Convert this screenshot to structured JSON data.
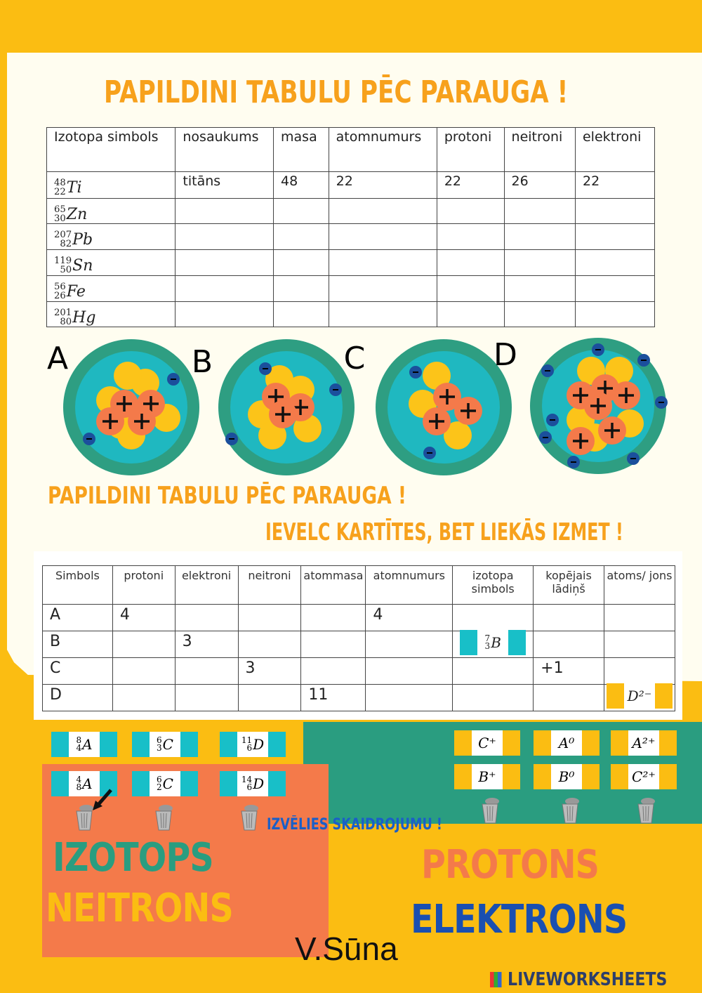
{
  "title1": "PAPILDINI TABULU PĒC PARAUGA !",
  "table1": {
    "headers": [
      "Izotopa simbols",
      "nosaukums",
      "masa",
      "atomnumurs",
      "protoni",
      "neitroni",
      "elektroni"
    ],
    "rows": [
      {
        "iso": {
          "a": "48",
          "z": "22",
          "s": "Ti"
        },
        "cells": [
          "titāns",
          "48",
          "22",
          "22",
          "26",
          "22"
        ]
      },
      {
        "iso": {
          "a": "65",
          "z": "30",
          "s": "Zn"
        },
        "cells": [
          "",
          "",
          "",
          "",
          "",
          ""
        ]
      },
      {
        "iso": {
          "a": "207",
          "z": "82",
          "s": "Pb"
        },
        "cells": [
          "",
          "",
          "",
          "",
          "",
          ""
        ]
      },
      {
        "iso": {
          "a": "119",
          "z": "50",
          "s": "Sn"
        },
        "cells": [
          "",
          "",
          "",
          "",
          "",
          ""
        ]
      },
      {
        "iso": {
          "a": "56",
          "z": "26",
          "s": "Fe"
        },
        "cells": [
          "",
          "",
          "",
          "",
          "",
          ""
        ]
      },
      {
        "iso": {
          "a": "201",
          "z": "80",
          "s": "Hg"
        },
        "cells": [
          "",
          "",
          "",
          "",
          "",
          ""
        ]
      }
    ]
  },
  "atoms": [
    {
      "label": "A"
    },
    {
      "label": "B"
    },
    {
      "label": "C"
    },
    {
      "label": "D"
    }
  ],
  "title2": "PAPILDINI TABULU PĒC PARAUGA !",
  "title3": "IEVELC KARTĪTES, BET LIEKĀS IZMET !",
  "table2": {
    "headers": [
      "Simbols",
      "protoni",
      "elektroni",
      "neitroni",
      "atommasa",
      "atomnumurs",
      "izotopa simbols",
      "kopējais lādiņš",
      "atoms/ jons"
    ],
    "rows": [
      [
        "A",
        "4",
        "",
        "",
        "",
        "4",
        "",
        "",
        ""
      ],
      [
        "B",
        "",
        "3",
        "",
        "",
        "",
        "",
        "",
        ""
      ],
      [
        "C",
        "",
        "",
        "3",
        "",
        "",
        "",
        "+1",
        ""
      ],
      [
        "D",
        "",
        "",
        "",
        "11",
        "",
        "",
        "",
        ""
      ]
    ],
    "placed_iso": {
      "a": "7",
      "z": "3",
      "s": "B"
    },
    "placed_ion": "D²⁻"
  },
  "iso_cards": [
    {
      "a": "8",
      "z": "4",
      "s": "A"
    },
    {
      "a": "6",
      "z": "3",
      "s": "C"
    },
    {
      "a": "11",
      "z": "6",
      "s": "D"
    },
    {
      "a": "4",
      "z": "8",
      "s": "A"
    },
    {
      "a": "6",
      "z": "2",
      "s": "C"
    },
    {
      "a": "14",
      "z": "6",
      "s": "D"
    }
  ],
  "ion_cards": [
    "C⁺",
    "A⁰",
    "A²⁺",
    "B⁺",
    "B⁰",
    "C²⁺"
  ],
  "title4": "IZVĒLIES SKAIDROJUMU !",
  "words": {
    "izotops": "IZOTOPS",
    "neitrons": "NEITRONS",
    "protons": "PROTONS",
    "elektrons": "ELEKTRONS"
  },
  "author": "V.Sūna",
  "logo": "LIVEWORKSHEETS",
  "colors": {
    "background": "#fbbd12",
    "orange": "#f47a4a",
    "teal": "#2a9d80",
    "cyan": "#18bfc8",
    "title": "#f7a11c",
    "electron": "#1b4f9c"
  }
}
